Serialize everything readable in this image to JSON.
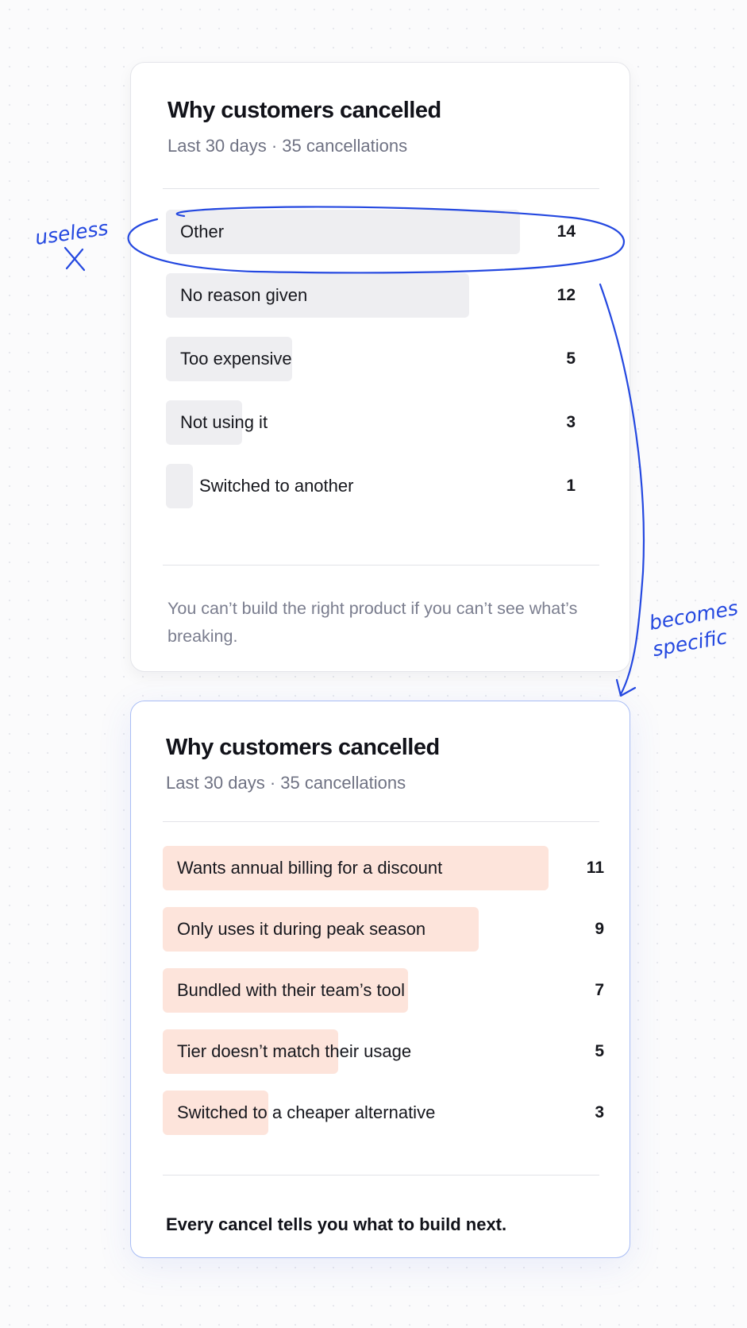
{
  "colors": {
    "annotation": "#2448e0",
    "bar_neutral": "#eeeef1",
    "bar_specific": "#fde4db",
    "after_border": "#a9bdf5"
  },
  "before": {
    "title": "Why customers cancelled",
    "subtitle": "Last 30 days · 35 cancellations",
    "footer": "You can’t build the right product if you can’t see what’s breaking.",
    "chart_data": {
      "type": "bar",
      "orientation": "horizontal",
      "title": "Why customers cancelled",
      "subtitle": "Last 30 days · 35 cancellations",
      "categories": [
        "Other",
        "No reason given",
        "Too expensive",
        "Not using it",
        "Switched to another"
      ],
      "values": [
        14,
        12,
        5,
        3,
        1
      ],
      "xlim": [
        0,
        14
      ]
    }
  },
  "after": {
    "title": "Why customers cancelled",
    "subtitle": "Last 30 days · 35 cancellations",
    "footer": "Every cancel tells you what to build next.",
    "chart_data": {
      "type": "bar",
      "orientation": "horizontal",
      "title": "Why customers cancelled",
      "subtitle": "Last 30 days · 35 cancellations",
      "categories": [
        "Wants annual billing for a discount",
        "Only uses it during peak season",
        "Bundled with their team’s tool",
        "Tier doesn’t match their usage",
        "Switched to a cheaper alternative"
      ],
      "values": [
        11,
        9,
        7,
        5,
        3
      ],
      "xlim": [
        0,
        11
      ]
    }
  },
  "annotations": {
    "useless": "useless",
    "useless_mark": "X",
    "becomes_line1": "becomes",
    "becomes_line2": "specific"
  }
}
